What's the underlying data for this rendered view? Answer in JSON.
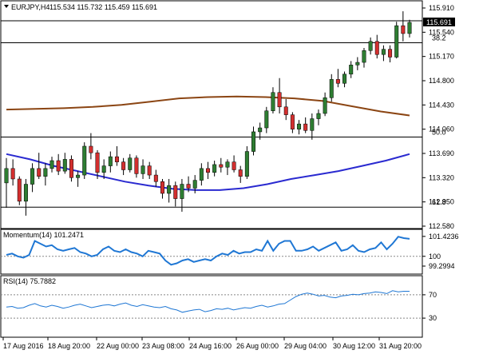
{
  "chart_data": {
    "type": "candlestick",
    "symbol": "EURJPY,H4",
    "ohlc_header": "115.534 115.732 115.459 115.691",
    "current_price_label": "115.691",
    "main_y_ticks": [
      "115.910",
      "115.540",
      "115.170",
      "114.800",
      "114.430",
      "114.060",
      "113.690",
      "113.320",
      "112.950",
      "112.580"
    ],
    "fib_levels": [
      {
        "label": "38.2",
        "price": 115.38
      },
      {
        "label": "50.0",
        "price": 113.94
      },
      {
        "label": "61.8",
        "price": 112.87
      }
    ],
    "candles": [
      [
        113.24,
        113.62,
        112.86,
        113.46
      ],
      [
        113.46,
        113.6,
        113.2,
        113.3
      ],
      [
        113.3,
        113.34,
        112.9,
        112.96
      ],
      [
        112.96,
        113.3,
        112.74,
        113.22
      ],
      [
        113.22,
        113.54,
        113.1,
        113.46
      ],
      [
        113.46,
        113.7,
        113.3,
        113.34
      ],
      [
        113.34,
        113.54,
        113.2,
        113.46
      ],
      [
        113.46,
        113.64,
        113.4,
        113.58
      ],
      [
        113.58,
        113.68,
        113.36,
        113.42
      ],
      [
        113.42,
        113.7,
        113.38,
        113.6
      ],
      [
        113.6,
        113.66,
        113.26,
        113.32
      ],
      [
        113.32,
        113.42,
        113.18,
        113.36
      ],
      [
        113.36,
        113.86,
        113.3,
        113.8
      ],
      [
        113.8,
        114.0,
        113.6,
        113.7
      ],
      [
        113.7,
        113.74,
        113.3,
        113.4
      ],
      [
        113.4,
        113.6,
        113.3,
        113.5
      ],
      [
        113.5,
        113.72,
        113.4,
        113.64
      ],
      [
        113.64,
        113.8,
        113.5,
        113.56
      ],
      [
        113.56,
        113.62,
        113.36,
        113.44
      ],
      [
        113.44,
        113.68,
        113.4,
        113.62
      ],
      [
        113.62,
        113.66,
        113.32,
        113.38
      ],
      [
        113.38,
        113.6,
        113.3,
        113.5
      ],
      [
        113.5,
        113.56,
        113.3,
        113.36
      ],
      [
        113.36,
        113.44,
        113.18,
        113.26
      ],
      [
        113.26,
        113.3,
        113.0,
        113.08
      ],
      [
        113.08,
        113.3,
        112.94,
        113.2
      ],
      [
        113.2,
        113.26,
        112.88,
        113.0
      ],
      [
        113.0,
        113.3,
        112.8,
        113.22
      ],
      [
        113.22,
        113.34,
        113.1,
        113.16
      ],
      [
        113.16,
        113.36,
        113.08,
        113.28
      ],
      [
        113.28,
        113.54,
        113.2,
        113.46
      ],
      [
        113.46,
        113.56,
        113.3,
        113.4
      ],
      [
        113.4,
        113.58,
        113.34,
        113.52
      ],
      [
        113.52,
        113.62,
        113.4,
        113.48
      ],
      [
        113.48,
        113.6,
        113.36,
        113.56
      ],
      [
        113.56,
        113.66,
        113.4,
        113.44
      ],
      [
        113.44,
        113.5,
        113.24,
        113.34
      ],
      [
        113.34,
        113.8,
        113.3,
        113.72
      ],
      [
        113.72,
        114.1,
        113.66,
        114.02
      ],
      [
        114.02,
        114.16,
        113.9,
        114.08
      ],
      [
        114.08,
        114.4,
        114.0,
        114.34
      ],
      [
        114.34,
        114.7,
        114.3,
        114.62
      ],
      [
        114.62,
        114.84,
        114.3,
        114.4
      ],
      [
        114.4,
        114.52,
        114.2,
        114.28
      ],
      [
        114.28,
        114.32,
        114.0,
        114.06
      ],
      [
        114.06,
        114.2,
        113.98,
        114.14
      ],
      [
        114.14,
        114.24,
        114.0,
        114.04
      ],
      [
        114.04,
        114.3,
        113.9,
        114.22
      ],
      [
        114.22,
        114.36,
        114.12,
        114.3
      ],
      [
        114.3,
        114.62,
        114.26,
        114.54
      ],
      [
        114.54,
        114.9,
        114.48,
        114.82
      ],
      [
        114.82,
        114.98,
        114.7,
        114.76
      ],
      [
        114.76,
        114.94,
        114.7,
        114.9
      ],
      [
        114.9,
        115.1,
        114.84,
        115.04
      ],
      [
        115.04,
        115.16,
        114.96,
        115.08
      ],
      [
        115.08,
        115.3,
        115.0,
        115.26
      ],
      [
        115.26,
        115.46,
        115.2,
        115.4
      ],
      [
        115.4,
        115.5,
        115.14,
        115.2
      ],
      [
        115.2,
        115.34,
        115.1,
        115.28
      ],
      [
        115.28,
        115.34,
        115.08,
        115.16
      ],
      [
        115.16,
        115.7,
        115.14,
        115.64
      ],
      [
        115.64,
        115.86,
        115.4,
        115.52
      ],
      [
        115.52,
        115.73,
        115.46,
        115.69
      ]
    ],
    "momentum": {
      "label": "Momentum(14) 101.2471",
      "y_ticks": [
        "101.4236",
        "100",
        "99.2994"
      ],
      "reference": 100,
      "ylim": [
        98.9,
        101.7
      ],
      "values": [
        100.1,
        100.2,
        100.0,
        99.9,
        100.1,
        101.1,
        100.9,
        100.7,
        100.8,
        100.5,
        100.4,
        100.5,
        100.6,
        100.3,
        100.2,
        100.0,
        100.1,
        100.5,
        100.7,
        100.4,
        100.3,
        100.5,
        100.3,
        100.2,
        100.0,
        100.4,
        100.3,
        100.2,
        99.7,
        99.4,
        99.5,
        99.7,
        99.8,
        99.6,
        99.7,
        99.8,
        99.7,
        100.0,
        100.2,
        100.1,
        100.4,
        100.2,
        100.3,
        100.3,
        100.5,
        100.4,
        101.1,
        100.4,
        100.9,
        101.1,
        101.1,
        100.4,
        100.4,
        100.5,
        100.7,
        100.4,
        100.6,
        100.8,
        101.0,
        100.4,
        100.5,
        100.8,
        100.4,
        100.3,
        100.5,
        100.6,
        101.0,
        100.5,
        100.9,
        101.4,
        101.3,
        101.25
      ]
    },
    "rsi": {
      "label": "RSI(14) 75.7882",
      "y_ticks": [
        "70",
        "30"
      ],
      "ylim": [
        0,
        100
      ],
      "levels": [
        70,
        30
      ],
      "values": [
        49,
        50,
        47,
        48,
        52,
        55,
        51,
        49,
        52,
        50,
        47,
        49,
        52,
        54,
        51,
        48,
        50,
        52,
        53,
        51,
        54,
        56,
        52,
        50,
        53,
        51,
        49,
        48,
        50,
        46,
        44,
        40,
        42,
        44,
        45,
        41,
        43,
        46,
        45,
        47,
        44,
        46,
        48,
        47,
        50,
        52,
        49,
        51,
        54,
        55,
        61,
        67,
        71,
        73,
        71,
        68,
        69,
        66,
        65,
        68,
        69,
        71,
        70,
        72,
        73,
        75,
        74,
        72,
        77,
        75,
        76,
        76
      ]
    },
    "ma_fast": {
      "values": [
        114.36,
        114.37,
        114.38,
        114.4,
        114.43,
        114.48,
        114.53,
        114.55,
        114.56,
        114.55,
        114.53,
        114.49,
        114.41,
        114.33,
        114.27
      ]
    },
    "ma_slow": {
      "values": [
        113.68,
        113.6,
        113.5,
        113.42,
        113.34,
        113.26,
        113.2,
        113.15,
        113.13,
        113.13,
        113.16,
        113.22,
        113.3,
        113.36,
        113.42,
        113.5,
        113.58,
        113.68
      ]
    },
    "x_labels": [
      "17 Aug 2016",
      "18 Aug 20:00",
      "22 Aug 00:00",
      "23 Aug 08:00",
      "24 Aug 16:00",
      "26 Aug 00:00",
      "29 Aug 04:00",
      "30 Aug 12:00",
      "31 Aug 20:00"
    ],
    "colors": {
      "bull": "#2e7d32",
      "bear": "#d32f2f",
      "ma_fast": "#8b4513",
      "ma_slow": "#2a2ad0",
      "indicator": "#1f77d4",
      "grid_line": "#000000"
    }
  }
}
